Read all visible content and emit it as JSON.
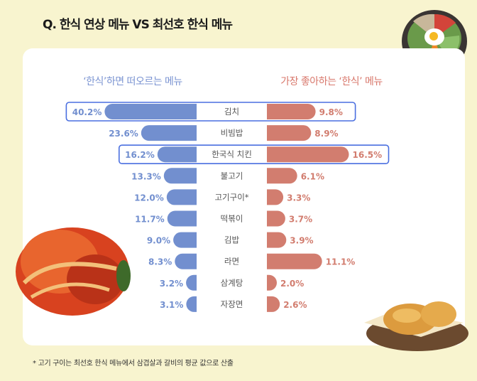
{
  "title": "Q. 한식 연상 메뉴 VS 최선호 한식 메뉴",
  "footnote": "* 고기 구이는 최선호 한식 메뉴에서 삼겹살과 갈비의 평균 값으로 산출",
  "colors": {
    "left": "#728fcf",
    "right": "#d27d6f",
    "highlight": "#4a6fe0",
    "background": "#f8f4cf"
  },
  "chart_data": {
    "type": "bar",
    "orientation": "butterfly-horizontal",
    "title": "Q. 한식 연상 메뉴 VS 최선호 한식 메뉴",
    "categories": [
      "김치",
      "비빔밥",
      "한국식 치킨",
      "불고기",
      "고기구이*",
      "떡볶이",
      "김밥",
      "라면",
      "삼계탕",
      "자장면"
    ],
    "series": [
      {
        "name": "‘한식’하면 떠오르는 메뉴",
        "side": "left",
        "values": [
          40.2,
          23.6,
          16.2,
          13.3,
          12.0,
          11.7,
          9.0,
          8.3,
          3.2,
          3.1
        ]
      },
      {
        "name": "가장 좋아하는 ‘한식’ 메뉴",
        "side": "right",
        "values": [
          9.8,
          8.9,
          16.5,
          6.1,
          3.3,
          3.7,
          3.9,
          11.1,
          2.0,
          2.6
        ]
      }
    ],
    "unit": "%",
    "highlighted": [
      "김치",
      "한국식 치킨"
    ]
  }
}
